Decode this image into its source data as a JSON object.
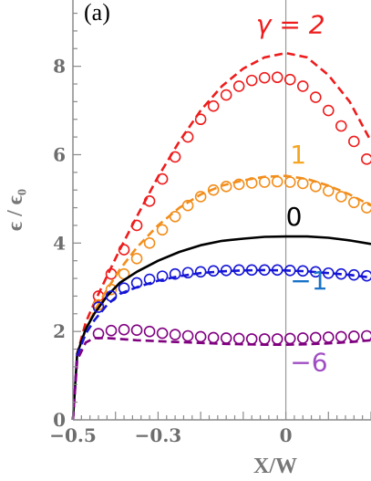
{
  "chart_data": {
    "type": "line",
    "panel_label": "(a)",
    "xlabel": "X/W",
    "ylabel": "ϵ / ϵ₀",
    "xlim": [
      -0.5,
      0.2
    ],
    "ylim": [
      0,
      9.5
    ],
    "x_ticks": [
      {
        "value": -0.5,
        "label": "−0.5"
      },
      {
        "value": -0.3,
        "label": "−0.3"
      },
      {
        "value": 0,
        "label": "0"
      }
    ],
    "y_ticks": [
      {
        "value": 0,
        "label": "0"
      },
      {
        "value": 2,
        "label": "2"
      },
      {
        "value": 4,
        "label": "4"
      },
      {
        "value": 6,
        "label": "6"
      },
      {
        "value": 8,
        "label": "8"
      }
    ],
    "vertical_reference_line_x": 0,
    "series": [
      {
        "name": "γ = 2",
        "color": "#ee1c1c",
        "style": "dashed",
        "x": [
          -0.5,
          -0.49,
          -0.47,
          -0.45,
          -0.42,
          -0.39,
          -0.35,
          -0.3,
          -0.25,
          -0.2,
          -0.15,
          -0.1,
          -0.05,
          0,
          0.05,
          0.1,
          0.15,
          0.2
        ],
        "y": [
          0,
          1.5,
          2.2,
          2.65,
          3.25,
          3.85,
          4.6,
          5.5,
          6.3,
          7.0,
          7.55,
          7.95,
          8.2,
          8.3,
          8.2,
          7.8,
          7.2,
          6.3
        ]
      },
      {
        "name": "γ = 2 (markers)",
        "color": "#ee1c1c",
        "style": "circles",
        "x": [
          -0.44,
          -0.41,
          -0.38,
          -0.35,
          -0.32,
          -0.29,
          -0.26,
          -0.23,
          -0.2,
          -0.17,
          -0.14,
          -0.11,
          -0.08,
          -0.05,
          -0.02,
          0.01,
          0.04,
          0.07,
          0.1,
          0.13,
          0.16,
          0.19
        ],
        "y": [
          2.8,
          3.3,
          3.85,
          4.4,
          4.95,
          5.45,
          5.95,
          6.4,
          6.8,
          7.1,
          7.35,
          7.55,
          7.68,
          7.74,
          7.75,
          7.7,
          7.55,
          7.3,
          7.0,
          6.65,
          6.3,
          5.9
        ]
      },
      {
        "name": "1",
        "color": "#f28e1c",
        "style": "dashed",
        "x": [
          -0.5,
          -0.49,
          -0.47,
          -0.45,
          -0.42,
          -0.39,
          -0.35,
          -0.3,
          -0.25,
          -0.2,
          -0.15,
          -0.1,
          -0.05,
          0,
          0.05,
          0.1,
          0.15,
          0.2
        ],
        "y": [
          0,
          1.45,
          2.05,
          2.45,
          2.95,
          3.4,
          3.9,
          4.4,
          4.8,
          5.1,
          5.3,
          5.42,
          5.5,
          5.52,
          5.45,
          5.3,
          5.1,
          4.85
        ]
      },
      {
        "name": "1 (markers)",
        "color": "#f28e1c",
        "style": "circles",
        "x": [
          -0.44,
          -0.41,
          -0.38,
          -0.35,
          -0.32,
          -0.29,
          -0.26,
          -0.23,
          -0.2,
          -0.17,
          -0.14,
          -0.11,
          -0.08,
          -0.05,
          -0.02,
          0.01,
          0.04,
          0.07,
          0.1,
          0.13,
          0.16,
          0.19
        ],
        "y": [
          2.6,
          2.95,
          3.3,
          3.65,
          4.0,
          4.3,
          4.6,
          4.85,
          5.05,
          5.2,
          5.28,
          5.33,
          5.36,
          5.38,
          5.39,
          5.38,
          5.35,
          5.28,
          5.18,
          5.05,
          4.92,
          4.8
        ]
      },
      {
        "name": "0",
        "color": "#000000",
        "style": "solid",
        "x": [
          -0.5,
          -0.49,
          -0.47,
          -0.45,
          -0.42,
          -0.39,
          -0.35,
          -0.3,
          -0.25,
          -0.2,
          -0.15,
          -0.1,
          -0.05,
          0,
          0.05,
          0.1,
          0.15,
          0.2
        ],
        "y": [
          0,
          1.5,
          2.05,
          2.4,
          2.8,
          3.1,
          3.35,
          3.6,
          3.8,
          3.95,
          4.05,
          4.1,
          4.14,
          4.15,
          4.15,
          4.12,
          4.06,
          3.98
        ]
      },
      {
        "name": "−1",
        "color": "#1515d6",
        "style": "dashed",
        "x": [
          -0.5,
          -0.49,
          -0.47,
          -0.45,
          -0.42,
          -0.39,
          -0.35,
          -0.3,
          -0.25,
          -0.2,
          -0.15,
          -0.1,
          -0.05,
          0,
          0.05,
          0.1,
          0.15,
          0.2
        ],
        "y": [
          0,
          1.45,
          1.95,
          2.25,
          2.6,
          2.85,
          3.0,
          3.15,
          3.25,
          3.32,
          3.36,
          3.38,
          3.39,
          3.38,
          3.36,
          3.32,
          3.28,
          3.22
        ]
      },
      {
        "name": "−1 (markers)",
        "color": "#1515d6",
        "style": "circles",
        "x": [
          -0.44,
          -0.41,
          -0.38,
          -0.35,
          -0.32,
          -0.29,
          -0.26,
          -0.23,
          -0.2,
          -0.17,
          -0.14,
          -0.11,
          -0.08,
          -0.05,
          -0.02,
          0.01,
          0.04,
          0.07,
          0.1,
          0.13,
          0.16,
          0.19
        ],
        "y": [
          2.55,
          2.8,
          2.98,
          3.1,
          3.18,
          3.25,
          3.3,
          3.33,
          3.35,
          3.37,
          3.38,
          3.39,
          3.39,
          3.39,
          3.39,
          3.38,
          3.37,
          3.35,
          3.32,
          3.3,
          3.28,
          3.26
        ]
      },
      {
        "name": "−6",
        "color": "#800080",
        "style": "dashed",
        "x": [
          -0.5,
          -0.49,
          -0.47,
          -0.45,
          -0.42,
          -0.39,
          -0.35,
          -0.3,
          -0.25,
          -0.2,
          -0.15,
          -0.1,
          -0.05,
          0,
          0.05,
          0.1,
          0.15,
          0.2
        ],
        "y": [
          0,
          1.35,
          1.75,
          1.85,
          1.85,
          1.83,
          1.8,
          1.78,
          1.76,
          1.74,
          1.72,
          1.71,
          1.7,
          1.7,
          1.71,
          1.73,
          1.76,
          1.8
        ]
      },
      {
        "name": "−6 (markers)",
        "color": "#800080",
        "style": "circles",
        "x": [
          -0.44,
          -0.41,
          -0.38,
          -0.35,
          -0.32,
          -0.29,
          -0.26,
          -0.23,
          -0.2,
          -0.17,
          -0.14,
          -0.11,
          -0.08,
          -0.05,
          -0.02,
          0.01,
          0.04,
          0.07,
          0.1,
          0.13,
          0.16,
          0.19
        ],
        "y": [
          1.95,
          2.02,
          2.04,
          2.03,
          2.0,
          1.96,
          1.93,
          1.9,
          1.88,
          1.86,
          1.85,
          1.84,
          1.83,
          1.83,
          1.83,
          1.84,
          1.85,
          1.86,
          1.87,
          1.88,
          1.89,
          1.9
        ]
      }
    ],
    "curve_labels": [
      {
        "text": "γ = 2",
        "color": "#ee1c1c",
        "x": -0.07,
        "y": 8.75
      },
      {
        "text": "1",
        "color": "#f5a623",
        "x": 0.01,
        "y": 5.8
      },
      {
        "text": "0",
        "color": "#000000",
        "x": 0.0,
        "y": 4.4
      },
      {
        "text": "−1",
        "color": "#1a73c9",
        "x": 0.01,
        "y": 2.95
      },
      {
        "text": "−6",
        "color": "#a04ec4",
        "x": 0.01,
        "y": 1.1
      }
    ]
  }
}
